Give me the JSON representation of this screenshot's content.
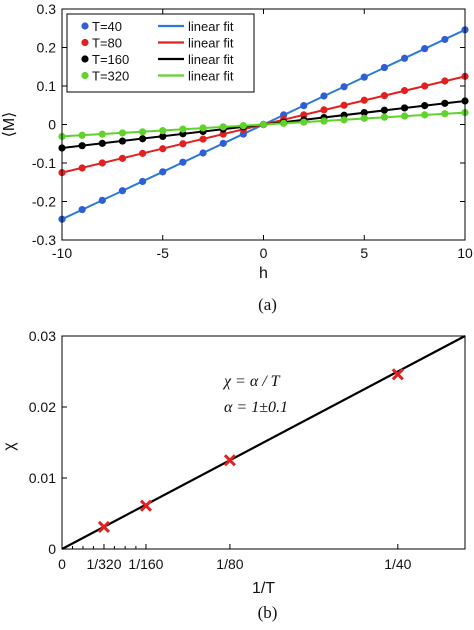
{
  "chart_data": [
    {
      "type": "scatter",
      "panel_label": "(a)",
      "xlabel": "h",
      "ylabel": "⟨M⟩",
      "xlim": [
        -10,
        10
      ],
      "ylim": [
        -0.3,
        0.3
      ],
      "xticks": [
        -10,
        -5,
        0,
        5,
        10
      ],
      "xtick_labels": [
        "-10",
        "-5",
        "0",
        "5",
        "10"
      ],
      "yticks": [
        -0.3,
        -0.2,
        -0.1,
        0,
        0.1,
        0.2,
        0.3
      ],
      "ytick_labels": [
        "-0.3",
        "-0.2",
        "-0.1",
        "0",
        "0.1",
        "0.2",
        "0.3"
      ],
      "legend_position": "top-left",
      "legend_fit_label": "linear fit",
      "x": [
        -10,
        -9,
        -8,
        -7,
        -6,
        -5,
        -4,
        -3,
        -2,
        -1,
        0,
        1,
        2,
        3,
        4,
        5,
        6,
        7,
        8,
        9,
        10
      ],
      "series": [
        {
          "name": "T=40",
          "color": "#2e5fd8",
          "fit_color": "#2b7bd6",
          "slope": 0.0246,
          "values": [
            -0.246,
            -0.221,
            -0.197,
            -0.172,
            -0.148,
            -0.123,
            -0.098,
            -0.074,
            -0.049,
            -0.025,
            0.0,
            0.025,
            0.049,
            0.074,
            0.098,
            0.123,
            0.148,
            0.172,
            0.197,
            0.221,
            0.246
          ]
        },
        {
          "name": "T=80",
          "color": "#e32020",
          "fit_color": "#e32020",
          "slope": 0.0125,
          "values": [
            -0.125,
            -0.113,
            -0.1,
            -0.088,
            -0.075,
            -0.063,
            -0.05,
            -0.038,
            -0.025,
            -0.013,
            0.0,
            0.013,
            0.025,
            0.038,
            0.05,
            0.063,
            0.075,
            0.088,
            0.1,
            0.113,
            0.125
          ]
        },
        {
          "name": "T=160",
          "color": "#000000",
          "fit_color": "#000000",
          "slope": 0.0061,
          "values": [
            -0.061,
            -0.055,
            -0.049,
            -0.043,
            -0.037,
            -0.031,
            -0.024,
            -0.018,
            -0.012,
            -0.006,
            0.0,
            0.006,
            0.012,
            0.018,
            0.024,
            0.031,
            0.037,
            0.043,
            0.049,
            0.055,
            0.061
          ]
        },
        {
          "name": "T=320",
          "color": "#5fd32a",
          "fit_color": "#5fd32a",
          "slope": 0.0031,
          "values": [
            -0.031,
            -0.028,
            -0.025,
            -0.022,
            -0.019,
            -0.016,
            -0.012,
            -0.009,
            -0.006,
            -0.003,
            0.0,
            0.003,
            0.006,
            0.009,
            0.012,
            0.016,
            0.019,
            0.022,
            0.025,
            0.028,
            0.031
          ]
        }
      ]
    },
    {
      "type": "scatter",
      "panel_label": "(b)",
      "xlabel": "1/T",
      "ylabel": "χ",
      "xlim": [
        0,
        0.03
      ],
      "ylim": [
        0,
        0.03
      ],
      "xticks": [
        0,
        0.003125,
        0.00625,
        0.0125,
        0.025
      ],
      "xtick_labels": [
        "0",
        "1/320",
        "1/160",
        "1/80",
        "1/40"
      ],
      "yticks": [
        0,
        0.01,
        0.02,
        0.03
      ],
      "ytick_labels": [
        "0",
        "0.01",
        "0.02",
        "0.03"
      ],
      "x": [
        0.003125,
        0.00625,
        0.0125,
        0.025
      ],
      "values": [
        0.0031,
        0.0061,
        0.0125,
        0.0246
      ],
      "marker_color": "#e32020",
      "fit": {
        "color": "#000000",
        "slope": 1.0
      },
      "annotations": [
        "χ = α / T",
        "α = 1±0.1"
      ]
    }
  ]
}
